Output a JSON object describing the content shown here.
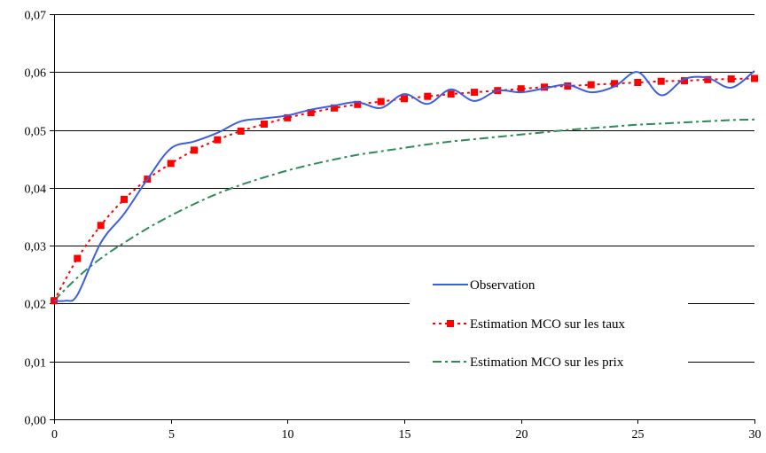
{
  "chart_data": {
    "type": "line",
    "title": "",
    "xlabel": "",
    "ylabel": "",
    "xlim": [
      0,
      30
    ],
    "ylim": [
      0,
      0.07
    ],
    "grid": "horizontal",
    "legend_position": "bottom-right",
    "x_ticks": [
      0,
      5,
      10,
      15,
      20,
      25,
      30
    ],
    "x_tick_labels": [
      "0",
      "5",
      "10",
      "15",
      "20",
      "25",
      "30"
    ],
    "y_ticks": [
      0,
      0.01,
      0.02,
      0.03,
      0.04,
      0.05,
      0.06,
      0.07
    ],
    "y_tick_labels": [
      "0,00",
      "0,01",
      "0,02",
      "0,03",
      "0,04",
      "0,05",
      "0,06",
      "0,07"
    ],
    "series": [
      {
        "name": "Observation",
        "style": "solid",
        "color": "#3b5fe0",
        "x": [
          0,
          0.5,
          1,
          2,
          3,
          4,
          5,
          6,
          7,
          8,
          9,
          10,
          11,
          12,
          13,
          14,
          15,
          16,
          17,
          18,
          19,
          20,
          21,
          22,
          23,
          24,
          25,
          26,
          27,
          28,
          29,
          30
        ],
        "y": [
          0.0205,
          0.0205,
          0.0215,
          0.0305,
          0.0355,
          0.0415,
          0.0468,
          0.048,
          0.0495,
          0.0515,
          0.052,
          0.0525,
          0.0535,
          0.0542,
          0.0548,
          0.0538,
          0.0562,
          0.0545,
          0.057,
          0.055,
          0.0568,
          0.0565,
          0.0572,
          0.0578,
          0.0565,
          0.0575,
          0.06,
          0.056,
          0.0588,
          0.059,
          0.0573,
          0.0602
        ]
      },
      {
        "name": "Estimation MCO sur les taux",
        "style": "dotted-square",
        "color": "#ff0000",
        "x": [
          0,
          1,
          2,
          3,
          4,
          5,
          6,
          7,
          8,
          9,
          10,
          11,
          12,
          13,
          14,
          15,
          16,
          17,
          18,
          19,
          20,
          21,
          22,
          23,
          24,
          25,
          26,
          27,
          28,
          29,
          30
        ],
        "y": [
          0.0205,
          0.0278,
          0.0335,
          0.038,
          0.0415,
          0.0442,
          0.0465,
          0.0483,
          0.0498,
          0.051,
          0.0521,
          0.053,
          0.0538,
          0.0544,
          0.0549,
          0.0554,
          0.0558,
          0.0562,
          0.0565,
          0.0568,
          0.0571,
          0.0574,
          0.0576,
          0.0578,
          0.058,
          0.0582,
          0.0584,
          0.0585,
          0.0587,
          0.0588,
          0.0589
        ]
      },
      {
        "name": "Estimation MCO sur les prix",
        "style": "dash-dot",
        "color": "#2e8b57",
        "x": [
          0,
          1,
          2,
          3,
          4,
          5,
          6,
          7,
          8,
          9,
          10,
          11,
          12,
          13,
          14,
          15,
          16,
          17,
          18,
          19,
          20,
          21,
          22,
          23,
          24,
          25,
          26,
          27,
          28,
          29,
          30
        ],
        "y": [
          0.0205,
          0.0245,
          0.0278,
          0.0305,
          0.033,
          0.0352,
          0.0372,
          0.039,
          0.0405,
          0.0418,
          0.043,
          0.044,
          0.0449,
          0.0457,
          0.0463,
          0.0469,
          0.0475,
          0.048,
          0.0484,
          0.0488,
          0.0492,
          0.0496,
          0.05,
          0.0503,
          0.0506,
          0.0509,
          0.0511,
          0.0513,
          0.0515,
          0.0517,
          0.0518
        ]
      }
    ]
  }
}
